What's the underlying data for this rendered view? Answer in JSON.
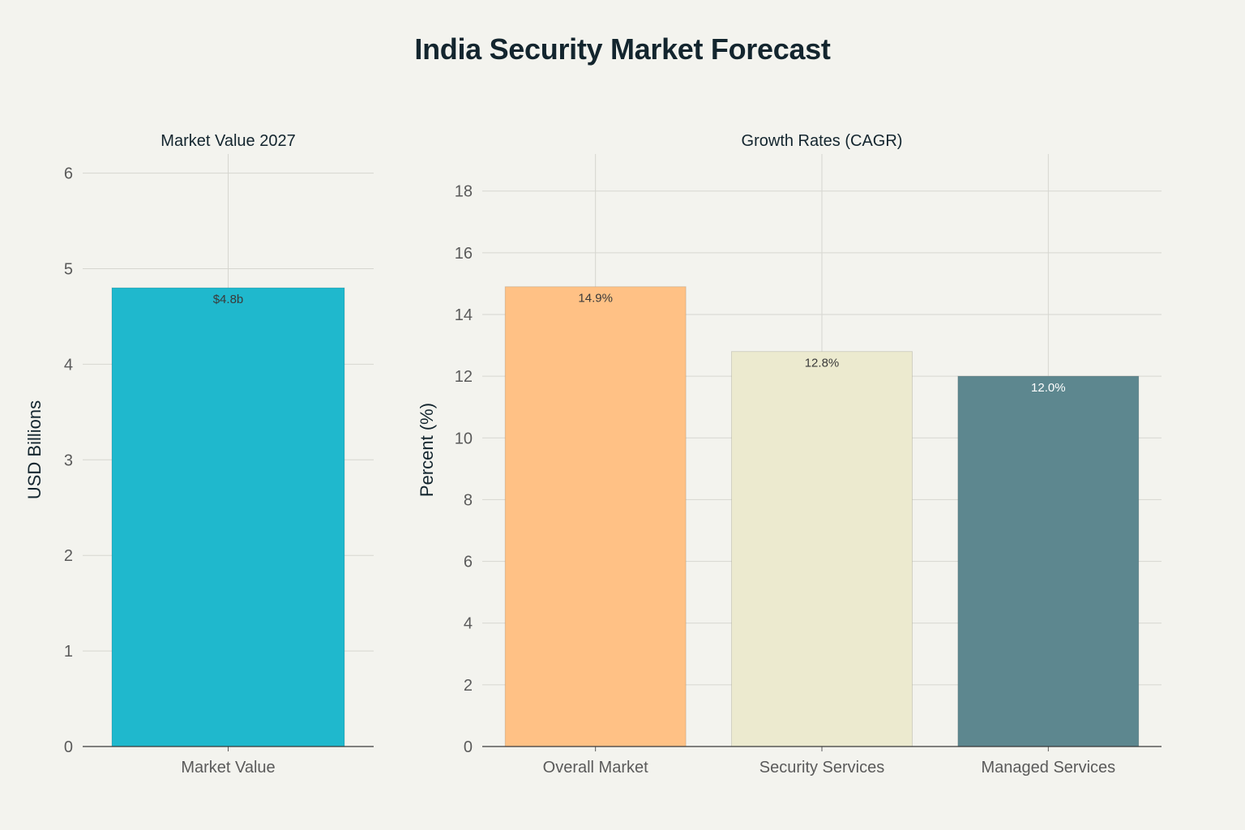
{
  "title": "India Security Market Forecast",
  "chart_data": [
    {
      "type": "bar",
      "title": "Market Value 2027",
      "xlabel": "",
      "ylabel": "USD Billions",
      "categories": [
        "Market Value"
      ],
      "values": [
        4.8
      ],
      "data_labels": [
        "$4.8b"
      ],
      "colors": [
        "#1fb8cd"
      ],
      "ylim": [
        0,
        6.2
      ],
      "yticks": [
        0,
        1,
        2,
        3,
        4,
        5,
        6
      ],
      "grid": true
    },
    {
      "type": "bar",
      "title": "Growth Rates (CAGR)",
      "xlabel": "",
      "ylabel": "Percent (%)",
      "categories": [
        "Overall Market",
        "Security Services",
        "Managed Services"
      ],
      "values": [
        14.9,
        12.8,
        12.0
      ],
      "data_labels": [
        "14.9%",
        "12.8%",
        "12.0%"
      ],
      "colors": [
        "#ffc185",
        "#eceacf",
        "#5d878f"
      ],
      "label_colors": [
        "#3a3a3a",
        "#3a3a3a",
        "#ffffff"
      ],
      "ylim": [
        0,
        19.2
      ],
      "yticks": [
        0,
        2,
        4,
        6,
        8,
        10,
        12,
        14,
        16,
        18
      ],
      "grid": true
    }
  ]
}
